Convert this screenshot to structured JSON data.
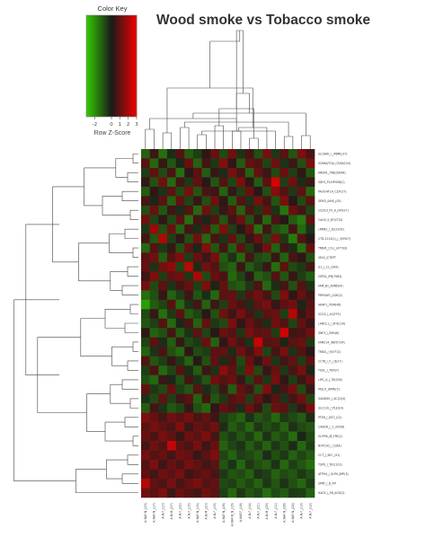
{
  "chart_data": {
    "type": "heatmap",
    "title": "Wood smoke vs Tobacco smoke",
    "color_key": {
      "title": "Color Key",
      "xlabel": "Row Z-Score",
      "ticks": [
        "-2",
        "0",
        "1",
        "2",
        "3"
      ],
      "range": [
        -3,
        3
      ],
      "colors": [
        "#33cc00",
        "#1a1a1a",
        "#ee0000"
      ]
    },
    "columns": [
      "A.NAF.N_(23)",
      "A.NAF.N_(17)",
      "A.N.F_(10)",
      "A.N.M_(27)",
      "A.N.F_(22)",
      "A.N.F_(15)",
      "A.NAF.N_(15)",
      "A.N.M_(20)",
      "A.N.F_(19)",
      "A.NAF.N_(26)",
      "A.NAF.N_N_(16)",
      "A.NAF.F_(18)",
      "A.N.F_(14)",
      "A.N.F_(21)",
      "A.N.M_(29)",
      "A.N.F_(11)",
      "A.NAF.N_(28)",
      "A.NAF.N_(24)",
      "A.N.F_(13)",
      "A.N.F_(12)"
    ],
    "rows": [
      "SLC6A6_L_/PBML(37)",
      "SCN6A/TGA_CSX8(154)",
      "KREM1_/TIB(00048)",
      "SDF4_P1/HPOSB(2)",
      "PA2F/HTLA_C2/F(27)",
      "SEM3_/UNS_(03)",
      "CCDC3_P2_A_(40217)",
      "CALM_5_B7/CT(5)",
      "LRRN2_/_1E(2109)",
      "CTD-2110(1)_/_3(9927)",
      "TMEM_/_FLL_(47733)",
      "SELE_/CTEPT",
      "IL1_/_CL_(34A)",
      "LYPD2_/PB(7983)",
      "FAM_B1_/EMB5(4)",
      "PRPSAP1_/LDE(2)",
      "AKAP1_/TEM(46)",
      "SCG3_/_AC(FF5)",
      "LANCL1_/_SF4(110)",
      "ZNF3_/_REN(6)",
      "FAM214_/DNT(734)",
      "TMED_/_M/7T(2)",
      "CCT6_/_F_/_B(17)",
      "TUSC_/_TEN(7)",
      "LIPC_A_/_7B(200)",
      "MILLX_(FAM)(5)",
      "GADD45_/_AC(2)(4)",
      "SLC11A_/_PLE(14)",
      "PTER_/_DST_(12)",
      "CXADR_/_1_UCP(8)",
      "SLITRK_/B_FRY(2)",
      "NOTCH2_/_C(8A)",
      "CCT_/_SEC_(31)",
      "TSPO_/_TEC(101)",
      "ATP5H_/_SLPH_BPF(3)",
      "SPRY_/_B_FPI",
      "HACE_/_5B_AGG(2)"
    ],
    "values": [
      [
        -1.2,
        0.5,
        -1.4,
        -0.3,
        0.8,
        -1.1,
        -0.6,
        0.3,
        1.1,
        -0.8,
        1.2,
        -0.4,
        0.6,
        -0.9,
        1.3,
        -0.5,
        0.9,
        -1.0,
        1.4,
        0.7
      ],
      [
        0.9,
        -1.3,
        0.4,
        -1.0,
        -0.2,
        1.1,
        -1.2,
        0.6,
        -0.5,
        1.5,
        0.3,
        -1.1,
        1.0,
        0.8,
        -0.7,
        1.2,
        -0.4,
        0.5,
        -0.9,
        1.3
      ],
      [
        -0.6,
        1.0,
        -0.8,
        0.7,
        -1.4,
        0.2,
        0.9,
        -1.1,
        0.4,
        -0.3,
        1.3,
        0.6,
        -1.2,
        1.0,
        0.5,
        -0.8,
        1.1,
        -0.6,
        0.3,
        -1.0
      ],
      [
        0.4,
        -0.9,
        1.2,
        -1.3,
        0.6,
        -0.5,
        1.0,
        0.2,
        -1.0,
        0.8,
        -0.7,
        1.4,
        0.3,
        -1.1,
        0.9,
        2.6,
        -0.6,
        1.2,
        -0.3,
        0.5
      ],
      [
        -1.1,
        0.3,
        -0.4,
        0.9,
        -0.8,
        1.3,
        -1.0,
        0.7,
        0.5,
        -1.2,
        0.4,
        -0.6,
        1.1,
        0.2,
        -0.9,
        1.5,
        0.8,
        -0.5,
        1.0,
        -1.3
      ],
      [
        0.7,
        -0.2,
        0.9,
        -1.2,
        1.0,
        -0.7,
        0.4,
        -0.9,
        1.2,
        0.3,
        -1.1,
        0.8,
        -0.4,
        1.3,
        0.6,
        -1.0,
        1.4,
        0.2,
        -0.8,
        0.9
      ],
      [
        -0.9,
        1.1,
        -1.0,
        0.5,
        -0.3,
        0.8,
        -1.3,
        1.2,
        -0.6,
        0.4,
        0.9,
        -1.2,
        0.7,
        -0.5,
        1.0,
        -0.4,
        -1.5,
        1.1,
        0.6,
        -0.7
      ],
      [
        1.2,
        -0.7,
        0.3,
        -0.8,
        0.9,
        -1.4,
        0.6,
        -0.2,
        0.8,
        -1.0,
        0.5,
        1.1,
        -0.9,
        0.4,
        -1.3,
        0.7,
        0.2,
        -1.1,
        -1.6,
        0.9
      ],
      [
        -0.5,
        1.8,
        -0.9,
        1.1,
        -1.2,
        0.6,
        -0.3,
        0.9,
        -1.1,
        1.4,
        -0.6,
        0.2,
        1.0,
        -1.4,
        0.5,
        -0.9,
        -1.2,
        0.6,
        -1.3,
        -0.4
      ],
      [
        0.6,
        -1.0,
        2.1,
        -0.6,
        0.3,
        -0.9,
        1.2,
        -1.3,
        0.7,
        -0.4,
        1.0,
        -0.8,
        0.4,
        1.1,
        -0.7,
        1.3,
        -0.5,
        -1.6,
        0.8,
        0.2
      ],
      [
        -1.3,
        0.8,
        -0.5,
        0.4,
        -0.9,
        1.0,
        -0.2,
        1.5,
        -1.0,
        0.6,
        -1.1,
        0.9,
        -0.6,
        0.3,
        1.2,
        -1.2,
        0.5,
        -0.3,
        -1.4,
        1.0
      ],
      [
        0.9,
        1.2,
        -1.1,
        0.8,
        1.4,
        -0.6,
        1.1,
        0.5,
        1.3,
        -1.1,
        -0.4,
        -1.3,
        0.6,
        -0.8,
        -1.0,
        0.4,
        -1.2,
        0.7,
        0.3,
        -0.9
      ],
      [
        1.1,
        -0.4,
        1.3,
        1.6,
        -0.7,
        2.3,
        -0.3,
        1.2,
        0.8,
        -0.9,
        -1.2,
        0.5,
        -1.1,
        -0.6,
        0.4,
        -1.4,
        0.9,
        -0.8,
        -0.5,
        0.6
      ],
      [
        0.5,
        1.4,
        -0.6,
        1.0,
        1.2,
        -0.5,
        2.0,
        -0.8,
        1.1,
        0.7,
        -1.3,
        -0.7,
        0.3,
        -1.2,
        -0.9,
        0.8,
        -1.0,
        0.4,
        -0.6,
        -1.1
      ],
      [
        1.3,
        -0.8,
        0.9,
        -0.4,
        0.6,
        1.1,
        -0.6,
        1.4,
        -0.2,
        1.0,
        -0.9,
        -1.1,
        -0.5,
        0.7,
        -1.3,
        -0.3,
        0.6,
        -0.9,
        0.8,
        -0.4
      ],
      [
        -1.4,
        -0.9,
        0.4,
        -1.2,
        -0.6,
        0.5,
        -1.0,
        -0.3,
        -1.3,
        0.9,
        1.0,
        -0.5,
        0.8,
        1.2,
        0.6,
        -0.8,
        1.4,
        0.3,
        1.1,
        0.5
      ],
      [
        -2.2,
        -1.1,
        -0.7,
        0.8,
        -1.3,
        -0.4,
        0.6,
        -1.2,
        0.5,
        -0.6,
        1.1,
        0.7,
        -0.3,
        1.0,
        1.3,
        0.4,
        0.9,
        1.2,
        -0.2,
        0.8
      ],
      [
        -0.8,
        0.4,
        -1.4,
        -0.5,
        0.9,
        -1.1,
        -0.7,
        0.2,
        -0.9,
        1.2,
        0.5,
        1.3,
        0.7,
        -0.4,
        0.9,
        1.1,
        -0.6,
        2.2,
        0.4,
        1.0
      ],
      [
        -1.0,
        -0.6,
        0.8,
        -1.3,
        -0.2,
        0.7,
        -1.2,
        1.0,
        -0.5,
        -0.8,
        1.4,
        0.3,
        1.1,
        0.6,
        -0.3,
        1.2,
        0.8,
        -0.7,
        1.0,
        0.4
      ],
      [
        0.3,
        -1.2,
        -0.9,
        0.6,
        -1.1,
        -0.4,
        0.9,
        -0.7,
        0.2,
        1.1,
        0.8,
        -0.5,
        1.3,
        0.9,
        1.0,
        -0.6,
        2.5,
        0.5,
        0.7,
        1.2
      ],
      [
        -0.7,
        0.9,
        -0.3,
        -1.1,
        0.4,
        -0.8,
        -0.5,
        1.1,
        -1.2,
        0.3,
        1.2,
        0.6,
        -0.4,
        2.4,
        0.8,
        1.0,
        -0.2,
        0.9,
        1.1,
        -0.5
      ],
      [
        -1.2,
        -0.4,
        0.7,
        -0.9,
        -1.3,
        0.3,
        -0.8,
        -0.6,
        0.9,
        1.0,
        -0.3,
        1.2,
        0.5,
        1.4,
        -0.7,
        0.6,
        1.3,
        -0.4,
        0.8,
        0.2
      ],
      [
        0.8,
        -1.0,
        -0.6,
        0.4,
        -0.5,
        -1.2,
        0.2,
        -0.9,
        1.0,
        -0.3,
        0.7,
        -0.8,
        1.1,
        0.3,
        1.2,
        -0.5,
        0.6,
        1.0,
        -0.6,
        0.9
      ],
      [
        -0.6,
        0.7,
        -1.3,
        -0.7,
        0.8,
        -0.3,
        -1.1,
        0.5,
        -0.4,
        1.6,
        0.9,
        -0.6,
        1.4,
        -0.8,
        0.4,
        1.1,
        -0.5,
        0.7,
        1.3,
        -0.2
      ],
      [
        -0.9,
        -1.3,
        0.5,
        -0.2,
        -0.9,
        0.6,
        -0.4,
        -1.0,
        1.2,
        0.8,
        1.1,
        0.4,
        -0.7,
        0.9,
        -0.5,
        1.3,
        0.3,
        -0.6,
        0.5,
        1.1
      ],
      [
        1.0,
        -0.5,
        -0.8,
        1.1,
        -0.6,
        -1.0,
        0.8,
        -0.3,
        -0.7,
        0.5,
        -1.1,
        1.0,
        0.6,
        -0.9,
        1.4,
        -0.2,
        0.7,
        1.2,
        -0.8,
        0.4
      ],
      [
        -0.4,
        -0.8,
        1.0,
        -0.6,
        0.5,
        0.9,
        -1.2,
        0.6,
        -1.0,
        -0.5,
        0.8,
        1.1,
        -0.6,
        1.0,
        0.3,
        0.9,
        -0.4,
        0.6,
        1.2,
        -0.7
      ],
      [
        -1.1,
        0.6,
        -0.4,
        -1.0,
        -0.7,
        0.4,
        -0.9,
        -1.3,
        0.3,
        1.0,
        0.7,
        -0.3,
        1.2,
        0.5,
        -0.8,
        1.1,
        0.9,
        -0.5,
        0.4,
        1.3
      ],
      [
        1.4,
        1.1,
        0.6,
        1.2,
        0.9,
        1.3,
        0.7,
        1.0,
        0.5,
        -0.6,
        -0.9,
        -1.2,
        -0.4,
        -1.0,
        -0.7,
        -1.3,
        -0.5,
        -0.8,
        -1.1,
        -0.3
      ],
      [
        0.9,
        1.3,
        1.0,
        0.7,
        1.4,
        0.5,
        1.1,
        0.8,
        1.2,
        -0.3,
        -1.1,
        -0.7,
        -1.3,
        -0.5,
        -0.9,
        -0.6,
        -1.2,
        -0.4,
        -0.8,
        -1.0
      ],
      [
        1.1,
        0.7,
        1.3,
        1.0,
        0.4,
        1.2,
        0.9,
        1.4,
        0.6,
        -0.9,
        -0.5,
        -1.0,
        -0.6,
        -1.3,
        -0.4,
        -1.1,
        -0.7,
        -1.4,
        -0.2,
        -0.8
      ],
      [
        0.6,
        1.2,
        0.8,
        2.4,
        1.0,
        0.7,
        1.3,
        0.5,
        1.1,
        -1.2,
        -0.7,
        -0.4,
        -1.1,
        -0.6,
        -1.2,
        -0.5,
        -0.9,
        -0.3,
        -1.3,
        -0.6
      ],
      [
        1.3,
        0.8,
        1.1,
        0.6,
        1.2,
        1.0,
        0.4,
        0.9,
        1.4,
        -0.7,
        -1.2,
        -0.6,
        -0.8,
        -1.1,
        -0.3,
        -0.9,
        -0.5,
        -1.2,
        -0.7,
        -1.1
      ],
      [
        0.8,
        1.4,
        0.5,
        1.1,
        0.7,
        1.3,
        1.0,
        0.6,
        0.9,
        -1.0,
        -0.4,
        -1.3,
        -0.5,
        -0.9,
        -1.1,
        -0.4,
        -1.3,
        -0.6,
        -1.0,
        -1.4
      ],
      [
        1.0,
        0.6,
        1.2,
        0.9,
        1.3,
        0.5,
        0.8,
        1.1,
        0.7,
        -0.5,
        -1.0,
        -0.8,
        -1.2,
        -0.4,
        -0.6,
        -1.2,
        -0.8,
        -1.0,
        -0.5,
        -0.9
      ],
      [
        2.2,
        1.0,
        0.7,
        1.3,
        0.6,
        1.1,
        1.4,
        0.8,
        1.0,
        -0.8,
        -0.6,
        -1.1,
        -0.7,
        -1.2,
        -0.5,
        -1.0,
        -0.4,
        -0.9,
        -1.3,
        -0.6
      ],
      [
        1.2,
        0.9,
        1.4,
        0.5,
        1.1,
        0.8,
        0.6,
        1.2,
        0.9,
        -0.6,
        -1.3,
        -0.5,
        -1.0,
        -0.7,
        -1.4,
        -0.8,
        -1.1,
        -0.5,
        -0.6,
        -1.2
      ]
    ]
  }
}
